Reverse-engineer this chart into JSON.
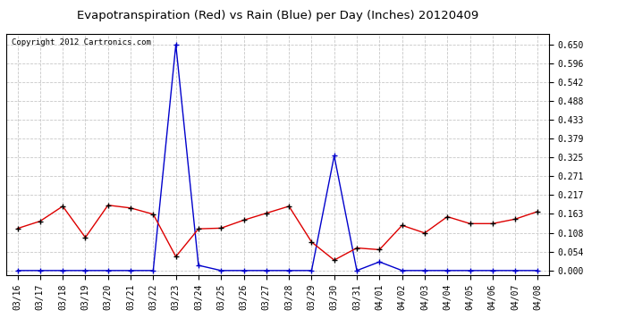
{
  "title": "Evapotranspiration (Red) vs Rain (Blue) per Day (Inches) 20120409",
  "copyright": "Copyright 2012 Cartronics.com",
  "x_labels": [
    "03/16",
    "03/17",
    "03/18",
    "03/19",
    "03/20",
    "03/21",
    "03/22",
    "03/23",
    "03/24",
    "03/25",
    "03/26",
    "03/27",
    "03/28",
    "03/29",
    "03/30",
    "03/31",
    "04/01",
    "04/02",
    "04/03",
    "04/04",
    "04/05",
    "04/06",
    "04/07",
    "04/08"
  ],
  "et_red": [
    0.121,
    0.142,
    0.185,
    0.095,
    0.188,
    0.18,
    0.162,
    0.04,
    0.12,
    0.122,
    0.145,
    0.165,
    0.185,
    0.082,
    0.03,
    0.065,
    0.06,
    0.13,
    0.108,
    0.155,
    0.135,
    0.135,
    0.148,
    0.17
  ],
  "rain_blue": [
    0.0,
    0.0,
    0.0,
    0.0,
    0.0,
    0.0,
    0.0,
    0.65,
    0.015,
    0.0,
    0.0,
    0.0,
    0.0,
    0.0,
    0.33,
    0.0,
    0.025,
    0.0,
    0.0,
    0.0,
    0.0,
    0.0,
    0.0,
    0.0
  ],
  "y_ticks": [
    0.0,
    0.054,
    0.108,
    0.163,
    0.217,
    0.271,
    0.325,
    0.379,
    0.433,
    0.488,
    0.542,
    0.596,
    0.65
  ],
  "background_color": "#ffffff",
  "grid_color": "#c8c8c8",
  "red_color": "#dd0000",
  "blue_color": "#0000cc",
  "title_fontsize": 9.5,
  "copyright_fontsize": 6.5,
  "tick_label_fontsize": 7
}
